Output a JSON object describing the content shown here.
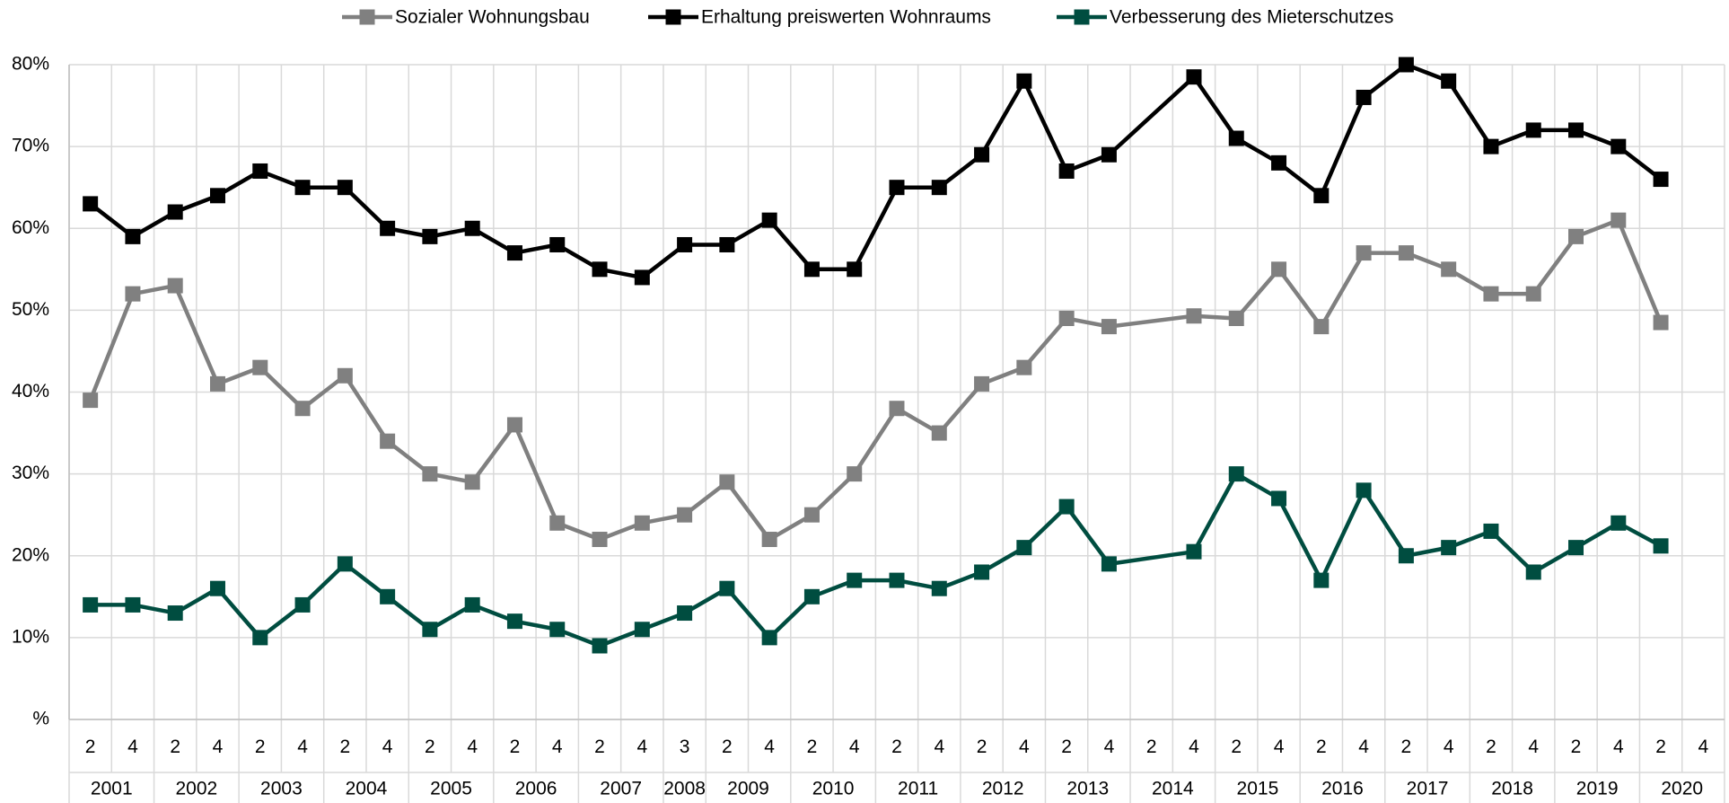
{
  "chart_data": {
    "type": "line",
    "groups": [
      {
        "name": "2001",
        "categories": [
          "2",
          "4"
        ]
      },
      {
        "name": "2002",
        "categories": [
          "2",
          "4"
        ]
      },
      {
        "name": "2003",
        "categories": [
          "2",
          "4"
        ]
      },
      {
        "name": "2004",
        "categories": [
          "2",
          "4"
        ]
      },
      {
        "name": "2005",
        "categories": [
          "2",
          "4"
        ]
      },
      {
        "name": "2006",
        "categories": [
          "2",
          "4"
        ]
      },
      {
        "name": "2007",
        "categories": [
          "2",
          "4"
        ]
      },
      {
        "name": "2008",
        "categories": [
          "3"
        ]
      },
      {
        "name": "2009",
        "categories": [
          "2",
          "4"
        ]
      },
      {
        "name": "2010",
        "categories": [
          "2",
          "4"
        ]
      },
      {
        "name": "2011",
        "categories": [
          "2",
          "4"
        ]
      },
      {
        "name": "2012",
        "categories": [
          "2",
          "4"
        ]
      },
      {
        "name": "2013",
        "categories": [
          "2",
          "4"
        ]
      },
      {
        "name": "2014",
        "categories": [
          "2",
          "4"
        ]
      },
      {
        "name": "2015",
        "categories": [
          "2",
          "4"
        ]
      },
      {
        "name": "2016",
        "categories": [
          "2",
          "4"
        ]
      },
      {
        "name": "2017",
        "categories": [
          "2",
          "4"
        ]
      },
      {
        "name": "2018",
        "categories": [
          "2",
          "4"
        ]
      },
      {
        "name": "2019",
        "categories": [
          "2",
          "4"
        ]
      },
      {
        "name": "2020",
        "categories": [
          "2",
          "4"
        ]
      }
    ],
    "series": [
      {
        "name": "Sozialer Wohnungsbau",
        "color": "#808080",
        "values": [
          39,
          52,
          53,
          41,
          43,
          38,
          42,
          34,
          30,
          29,
          36,
          24,
          22,
          24,
          25,
          29,
          22,
          25,
          30,
          38,
          35,
          41,
          43,
          49,
          48,
          null,
          49.3,
          49,
          55,
          48,
          57,
          57,
          55,
          52,
          52,
          59,
          61,
          48.5,
          null
        ]
      },
      {
        "name": "Erhaltung preiswerten Wohnraums",
        "color": "#000000",
        "values": [
          63,
          59,
          62,
          64,
          67,
          65,
          65,
          60,
          59,
          60,
          57,
          58,
          55,
          54,
          58,
          58,
          61,
          55,
          55,
          65,
          65,
          69,
          78,
          67,
          69,
          null,
          78.5,
          71,
          68,
          64,
          76,
          80,
          78,
          70,
          72,
          72,
          70,
          66,
          null
        ]
      },
      {
        "name": "Verbesserung des Mieterschutzes",
        "color": "#004d40",
        "values": [
          14,
          14,
          13,
          16,
          10,
          14,
          19,
          15,
          11,
          14,
          12,
          11,
          9,
          11,
          13,
          16,
          10,
          15,
          17,
          17,
          16,
          18,
          21,
          26,
          19,
          null,
          20.5,
          30,
          27,
          17,
          28,
          20,
          21,
          23,
          18,
          21,
          24,
          21.2,
          null
        ]
      }
    ],
    "connect_gaps": true,
    "ylim": [
      0,
      80
    ],
    "yticks": [
      {
        "value": 0,
        "label": "%"
      },
      {
        "value": 10,
        "label": "10%"
      },
      {
        "value": 20,
        "label": "20%"
      },
      {
        "value": 30,
        "label": "30%"
      },
      {
        "value": 40,
        "label": "40%"
      },
      {
        "value": 50,
        "label": "50%"
      },
      {
        "value": 60,
        "label": "60%"
      },
      {
        "value": 70,
        "label": "70%"
      },
      {
        "value": 80,
        "label": "80%"
      }
    ],
    "grid": true,
    "legend": "top"
  }
}
